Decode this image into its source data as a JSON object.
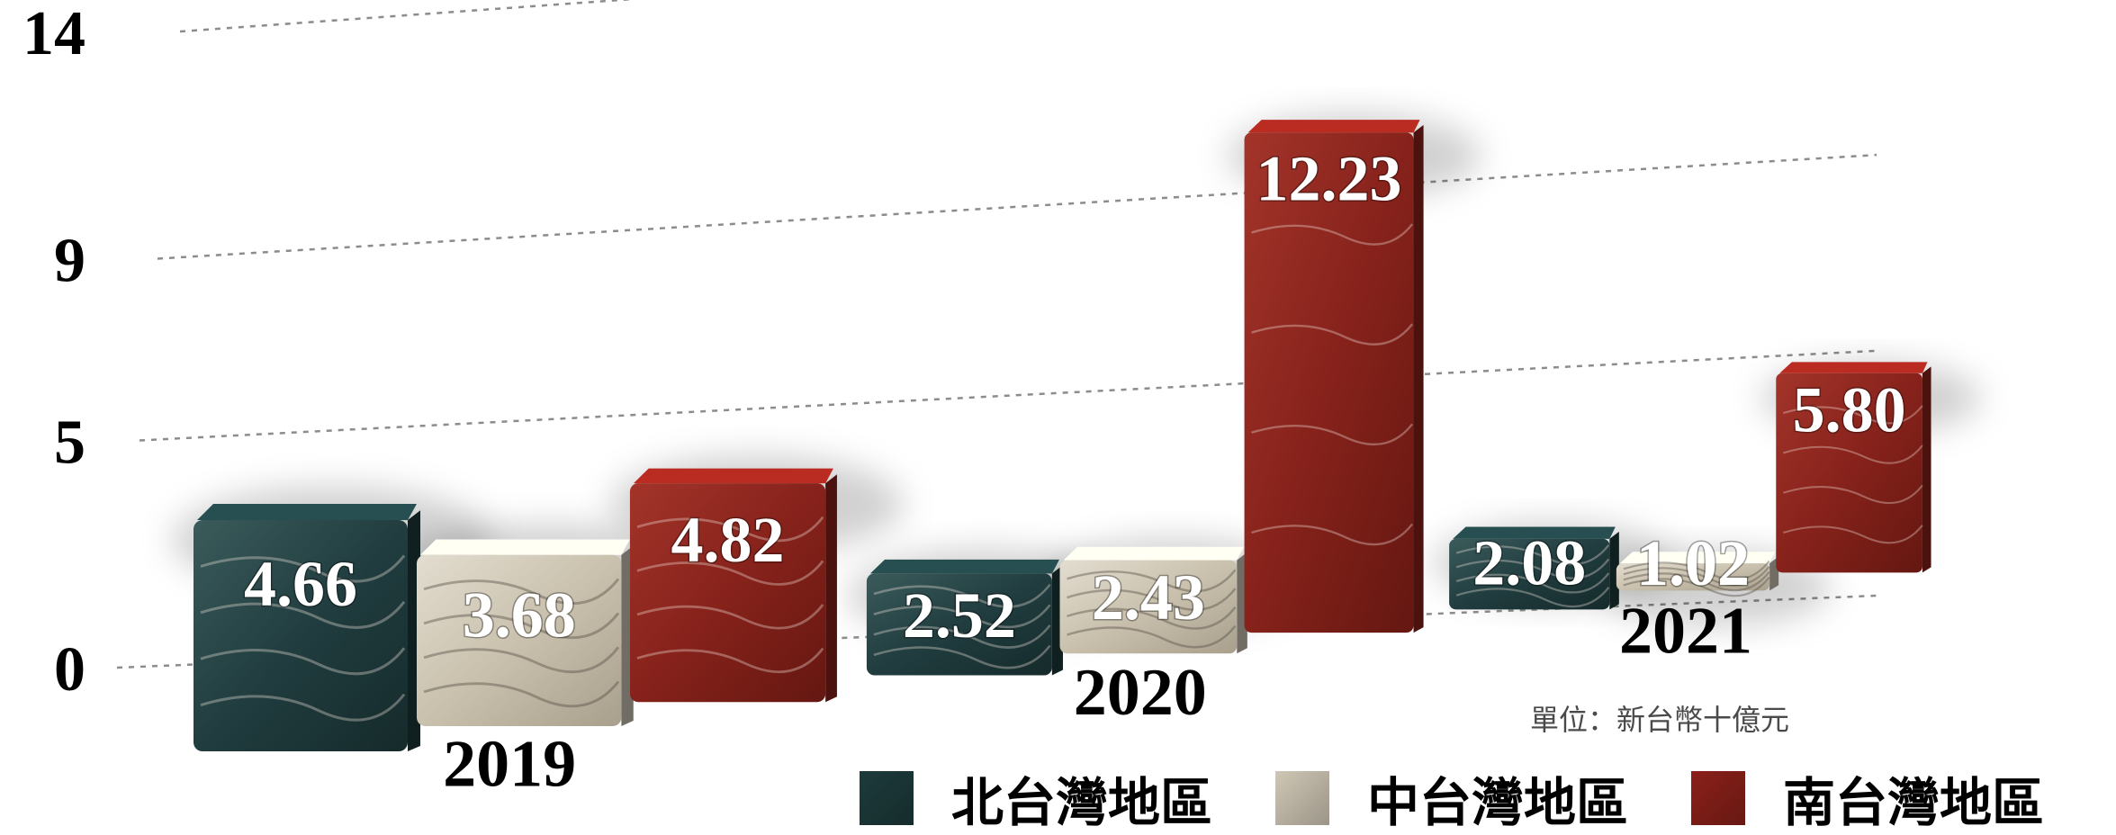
{
  "chart_data": {
    "type": "bar",
    "categories": [
      "2019",
      "2020",
      "2021"
    ],
    "series": [
      {
        "name": "北台灣地區",
        "values": [
          4.66,
          2.52,
          2.08
        ],
        "color": "#1d3a3b"
      },
      {
        "name": "中台灣地區",
        "values": [
          3.68,
          2.43,
          1.02
        ],
        "color": "#cfc7b5"
      },
      {
        "name": "南台灣地區",
        "values": [
          4.82,
          12.23,
          5.8
        ],
        "color": "#8a2019"
      }
    ],
    "data_labels": [
      [
        "4.66",
        "2.52",
        "2.08"
      ],
      [
        "3.68",
        "2.43",
        "1.02"
      ],
      [
        "4.82",
        "12.23",
        "5.80"
      ]
    ],
    "y_ticks": [
      0,
      5,
      9,
      14
    ],
    "ylim": [
      0,
      14
    ],
    "grid": true,
    "unit_note": "單位：新台幣十億元",
    "legend_position": "bottom-right",
    "style": "3d marble blocks"
  }
}
